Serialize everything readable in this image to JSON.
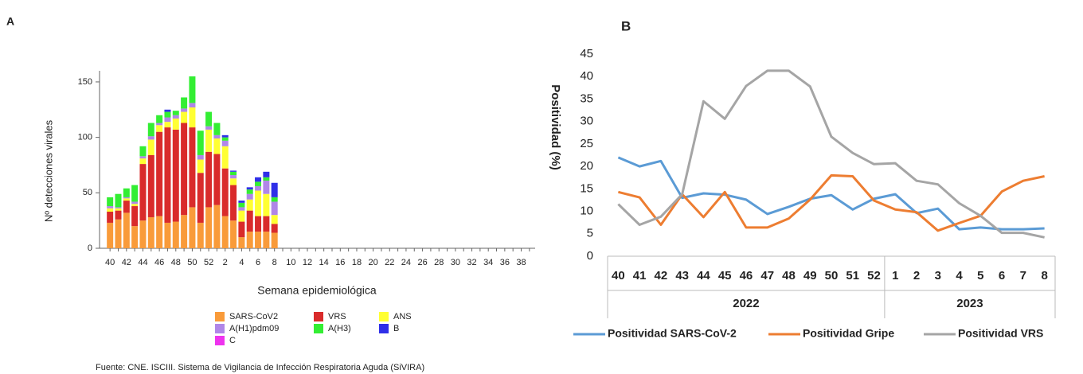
{
  "chart_data": [
    {
      "type": "stacked_bar",
      "title": "A",
      "source": "Fuente: CNE. ISCIII. Sistema de Vigilancia de Infección Respiratoria Aguda (SiVIRA)",
      "x_label": "Semana epidemiológica",
      "y_label": "Nº detecciones virales",
      "categories": [
        "40",
        null,
        "42",
        null,
        "44",
        null,
        "46",
        null,
        "48",
        null,
        "50",
        null,
        "52",
        null,
        "2",
        null,
        "4",
        null,
        "6",
        null,
        "8",
        null,
        "10",
        null,
        "12",
        null,
        "14",
        null,
        "16",
        null,
        "18",
        null,
        "20",
        null,
        "22",
        null,
        "24",
        null,
        "26",
        null,
        "28",
        null,
        "30",
        null,
        "32",
        null,
        "34",
        null,
        "36",
        null,
        "38",
        null
      ],
      "ylim": [
        0,
        160
      ],
      "yticks": [
        0,
        50,
        100,
        150
      ],
      "series": [
        {
          "name": "SARS-CoV2",
          "color": "#f99b3a",
          "values": [
            23,
            26,
            32,
            20,
            25,
            28,
            29,
            23,
            24,
            30,
            37,
            23,
            37,
            39,
            29,
            25,
            10,
            15,
            15,
            15,
            14,
            null,
            null,
            null,
            null,
            null,
            null,
            null,
            null,
            null,
            null,
            null,
            null,
            null,
            null,
            null,
            null,
            null,
            null,
            null,
            null,
            null,
            null,
            null,
            null,
            null,
            null,
            null,
            null,
            null,
            null,
            null
          ]
        },
        {
          "name": "VRS",
          "color": "#d92b2b",
          "values": [
            10,
            8,
            11,
            18,
            51,
            56,
            76,
            86,
            83,
            83,
            72,
            45,
            50,
            46,
            43,
            32,
            14,
            19,
            14,
            14,
            8,
            null,
            null,
            null,
            null,
            null,
            null,
            null,
            null,
            null,
            null,
            null,
            null,
            null,
            null,
            null,
            null,
            null,
            null,
            null,
            null,
            null,
            null,
            null,
            null,
            null,
            null,
            null,
            null,
            null,
            null,
            null
          ]
        },
        {
          "name": "ANS",
          "color": "#ffff33",
          "values": [
            3,
            2,
            2,
            2,
            5,
            14,
            6,
            5,
            10,
            10,
            18,
            12,
            20,
            14,
            20,
            6,
            10,
            10,
            23,
            20,
            8,
            null,
            null,
            null,
            null,
            null,
            null,
            null,
            null,
            null,
            null,
            null,
            null,
            null,
            null,
            null,
            null,
            null,
            null,
            null,
            null,
            null,
            null,
            null,
            null,
            null,
            null,
            null,
            null,
            null,
            null,
            null
          ]
        },
        {
          "name": "A(H1)pdm09",
          "color": "#b086e8",
          "values": [
            2,
            1,
            1,
            2,
            2,
            3,
            2,
            4,
            3,
            3,
            4,
            4,
            3,
            3,
            5,
            3,
            3,
            5,
            4,
            12,
            12,
            null,
            null,
            null,
            null,
            null,
            null,
            null,
            null,
            null,
            null,
            null,
            null,
            null,
            null,
            null,
            null,
            null,
            null,
            null,
            null,
            null,
            null,
            null,
            null,
            null,
            null,
            null,
            null,
            null,
            null,
            null
          ]
        },
        {
          "name": "A(H3)",
          "color": "#33ee33",
          "values": [
            8,
            12,
            8,
            15,
            9,
            12,
            7,
            5,
            4,
            10,
            24,
            22,
            13,
            11,
            3,
            3,
            4,
            4,
            4,
            3,
            4,
            null,
            null,
            null,
            null,
            null,
            null,
            null,
            null,
            null,
            null,
            null,
            null,
            null,
            null,
            null,
            null,
            null,
            null,
            null,
            null,
            null,
            null,
            null,
            null,
            null,
            null,
            null,
            null,
            null,
            null,
            null
          ]
        },
        {
          "name": "B",
          "color": "#2f2fe8",
          "values": [
            0,
            0,
            0,
            0,
            0,
            0,
            0,
            2,
            0,
            0,
            0,
            0,
            0,
            0,
            2,
            1,
            2,
            2,
            4,
            5,
            13,
            null,
            null,
            null,
            null,
            null,
            null,
            null,
            null,
            null,
            null,
            null,
            null,
            null,
            null,
            null,
            null,
            null,
            null,
            null,
            null,
            null,
            null,
            null,
            null,
            null,
            null,
            null,
            null,
            null,
            null,
            null
          ]
        },
        {
          "name": "C",
          "color": "#ee33ee",
          "values": [
            0,
            0,
            0,
            0,
            0,
            0,
            0,
            0,
            0,
            0,
            0,
            0,
            0,
            0,
            0,
            0,
            0,
            0,
            0,
            0,
            0,
            null,
            null,
            null,
            null,
            null,
            null,
            null,
            null,
            null,
            null,
            null,
            null,
            null,
            null,
            null,
            null,
            null,
            null,
            null,
            null,
            null,
            null,
            null,
            null,
            null,
            null,
            null,
            null,
            null,
            null,
            null
          ]
        }
      ]
    },
    {
      "type": "line",
      "title": "B",
      "y_label": "Positividad (%)",
      "categories": [
        "40",
        "41",
        "42",
        "43",
        "44",
        "45",
        "46",
        "47",
        "48",
        "49",
        "50",
        "51",
        "52",
        "1",
        "2",
        "3",
        "4",
        "5",
        "6",
        "7",
        "8"
      ],
      "category_groups": [
        "2022",
        "2022",
        "2022",
        "2022",
        "2022",
        "2022",
        "2022",
        "2022",
        "2022",
        "2022",
        "2022",
        "2022",
        "2022",
        "2023",
        "2023",
        "2023",
        "2023",
        "2023",
        "2023",
        "2023",
        "2023"
      ],
      "ylim": [
        0,
        45
      ],
      "yticks": [
        0,
        5,
        10,
        15,
        20,
        25,
        30,
        35,
        40,
        45
      ],
      "series": [
        {
          "name": "Positividad SARS-CoV-2",
          "color": "#5b9bd5",
          "values": [
            22,
            20,
            21.2,
            13,
            14,
            13.7,
            12.6,
            9.4,
            11,
            12.8,
            13.6,
            10.4,
            12.8,
            13.8,
            9.6,
            10.6,
            6,
            6.4,
            6,
            6,
            6.2
          ]
        },
        {
          "name": "Positividad Gripe",
          "color": "#ed7d31",
          "values": [
            14.3,
            13.1,
            7,
            13.8,
            8.7,
            14.3,
            6.4,
            6.4,
            8.4,
            12.6,
            18,
            17.8,
            12.4,
            10.4,
            9.8,
            5.7,
            7.4,
            9,
            14.4,
            16.8,
            17.8
          ]
        },
        {
          "name": "Positividad VRS",
          "color": "#a5a5a5",
          "values": [
            11.6,
            7,
            8.8,
            13.8,
            34.5,
            30.6,
            37.9,
            41.3,
            41.3,
            37.8,
            26.6,
            23,
            20.5,
            20.7,
            16.8,
            16,
            11.8,
            9,
            5.2,
            5.2,
            4.2
          ]
        }
      ]
    }
  ]
}
